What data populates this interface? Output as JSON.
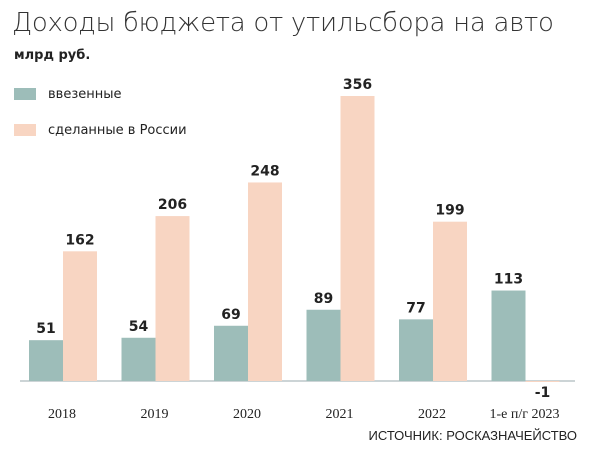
{
  "title": "Доходы бюджета от утильсбора на авто",
  "subtitle": "млрд руб.",
  "legend": {
    "imported_label": "ввезенные",
    "domestic_label": "сделанные в России"
  },
  "source": "ИСТОЧНИК: РОСКАЗНАЧЕЙСТВО",
  "colors": {
    "imported": "#9dbdb9",
    "domestic": "#f8d5c2",
    "baseline": "#9aa9ad"
  },
  "chart_data": {
    "type": "bar",
    "categories": [
      "2018",
      "2019",
      "2020",
      "2021",
      "2022",
      "1-е п/г 2023"
    ],
    "series": [
      {
        "name": "ввезенные",
        "values": [
          51,
          54,
          69,
          89,
          77,
          113
        ]
      },
      {
        "name": "сделанные в России",
        "values": [
          162,
          206,
          248,
          356,
          199,
          -1
        ]
      }
    ],
    "title": "Доходы бюджета от утильсбора на авто",
    "ylabel": "млрд руб.",
    "ylim": [
      -1,
      356
    ],
    "grid": false,
    "legend_position": "top-left"
  }
}
